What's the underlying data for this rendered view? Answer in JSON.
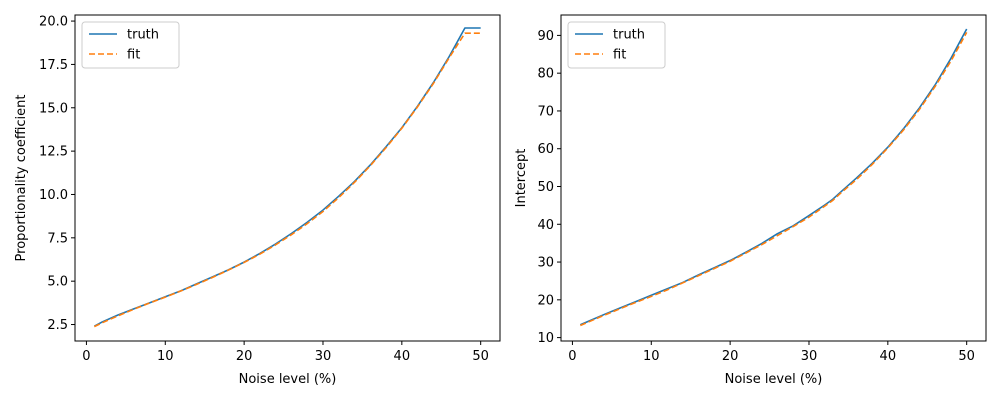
{
  "colors": {
    "truth": "#1f77b4",
    "fit": "#ff7f0e"
  },
  "chart_data": [
    {
      "type": "line",
      "xlabel": "Noise level (%)",
      "ylabel": "Proportionality coefficient",
      "xlim": [
        -1.45,
        52.45
      ],
      "ylim": [
        1.55,
        20.35
      ],
      "xticks": [
        0,
        10,
        20,
        30,
        40,
        50
      ],
      "xtick_labels": [
        "0",
        "10",
        "20",
        "30",
        "40",
        "50"
      ],
      "yticks": [
        2.5,
        5.0,
        7.5,
        10.0,
        12.5,
        15.0,
        17.5,
        20.0
      ],
      "ytick_labels": [
        "2.5",
        "5.0",
        "7.5",
        "10.0",
        "12.5",
        "15.0",
        "17.5",
        "20.0"
      ],
      "legend_position": "top-left",
      "series": [
        {
          "name": "truth",
          "style": "solid",
          "color": "#1f77b4",
          "x": [
            1,
            2,
            4,
            6,
            8,
            10,
            12,
            14,
            16,
            18,
            20,
            22,
            24,
            26,
            28,
            30,
            32,
            34,
            36,
            38,
            40,
            42,
            44,
            46,
            48,
            50
          ],
          "y": [
            2.4,
            2.65,
            3.05,
            3.4,
            3.75,
            4.1,
            4.45,
            4.85,
            5.25,
            5.65,
            6.1,
            6.6,
            7.15,
            7.75,
            8.4,
            9.1,
            9.9,
            10.75,
            11.7,
            12.75,
            13.85,
            15.1,
            16.45,
            17.95,
            19.6,
            19.6
          ]
        },
        {
          "name": "fit",
          "style": "dashed",
          "color": "#ff7f0e",
          "x": [
            1,
            2,
            4,
            6,
            8,
            10,
            12,
            14,
            16,
            18,
            20,
            22,
            24,
            26,
            28,
            30,
            32,
            34,
            36,
            38,
            40,
            42,
            44,
            46,
            48,
            50
          ],
          "y": [
            2.38,
            2.6,
            3.0,
            3.38,
            3.74,
            4.08,
            4.44,
            4.82,
            5.22,
            5.64,
            6.08,
            6.56,
            7.1,
            7.68,
            8.32,
            9.02,
            9.82,
            10.7,
            11.66,
            12.7,
            13.82,
            15.06,
            16.4,
            17.88,
            19.3,
            19.3
          ]
        }
      ]
    },
    {
      "type": "line",
      "xlabel": "Noise level (%)",
      "ylabel": "Intercept",
      "xlim": [
        -1.45,
        52.45
      ],
      "ylim": [
        9.1,
        95.4
      ],
      "xticks": [
        0,
        10,
        20,
        30,
        40,
        50
      ],
      "xtick_labels": [
        "0",
        "10",
        "20",
        "30",
        "40",
        "50"
      ],
      "yticks": [
        10,
        20,
        30,
        40,
        50,
        60,
        70,
        80,
        90
      ],
      "ytick_labels": [
        "10",
        "20",
        "30",
        "40",
        "50",
        "60",
        "70",
        "80",
        "90"
      ],
      "legend_position": "top-left",
      "series": [
        {
          "name": "truth",
          "style": "solid",
          "color": "#1f77b4",
          "x": [
            1,
            2,
            4,
            6,
            8,
            10,
            12,
            14,
            16,
            18,
            20,
            22,
            24,
            26,
            28,
            30,
            32,
            33,
            34,
            36,
            38,
            40,
            42,
            44,
            46,
            48,
            50
          ],
          "y": [
            13.4,
            14.3,
            16.1,
            17.8,
            19.5,
            21.2,
            22.9,
            24.6,
            26.6,
            28.5,
            30.4,
            32.6,
            34.9,
            37.5,
            39.6,
            42.3,
            45.1,
            46.6,
            48.5,
            52.2,
            56.1,
            60.4,
            65.3,
            70.8,
            76.9,
            83.9,
            91.7
          ]
        },
        {
          "name": "fit",
          "style": "dashed",
          "color": "#ff7f0e",
          "x": [
            1,
            2,
            4,
            6,
            8,
            10,
            12,
            14,
            16,
            18,
            20,
            22,
            24,
            26,
            28,
            30,
            32,
            33,
            34,
            36,
            38,
            40,
            42,
            44,
            46,
            48,
            50
          ],
          "y": [
            13.2,
            14.1,
            15.9,
            17.6,
            19.3,
            20.9,
            22.6,
            24.5,
            26.4,
            28.3,
            30.2,
            32.4,
            34.6,
            37.0,
            39.4,
            41.9,
            44.8,
            46.3,
            48.2,
            51.8,
            55.8,
            60.2,
            65.0,
            70.4,
            76.5,
            83.2,
            90.8
          ]
        }
      ]
    }
  ]
}
